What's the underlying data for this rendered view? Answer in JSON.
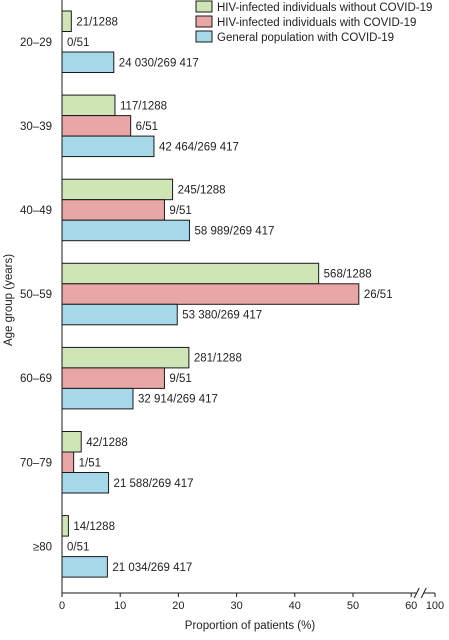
{
  "chart_data": {
    "type": "bar",
    "orientation": "horizontal",
    "xlabel": "Proportion of patients (%)",
    "ylabel": "Age group (years)",
    "xlim": [
      0,
      60
    ],
    "axis_break": true,
    "xticks": [
      "0",
      "10",
      "20",
      "30",
      "40",
      "50",
      "60",
      "100"
    ],
    "categories": [
      "20–29",
      "30–39",
      "40–49",
      "50–59",
      "60–69",
      "70–79",
      "≥80"
    ],
    "legend_position": "top-right",
    "series": [
      {
        "name": "HIV-infected individuals without COVID-19",
        "color": "#cfe5b6",
        "values": [
          1.6,
          9.1,
          19.0,
          44.1,
          21.8,
          3.3,
          1.1
        ],
        "labels": [
          "21/1288",
          "117/1288",
          "245/1288",
          "568/1288",
          "281/1288",
          "42/1288",
          "14/1288"
        ]
      },
      {
        "name": "HIV-infected individuals with COVID-19",
        "color": "#e9a6a6",
        "values": [
          0,
          11.8,
          17.6,
          51.0,
          17.6,
          2.0,
          0
        ],
        "labels": [
          "0/51",
          "6/51",
          "9/51",
          "26/51",
          "9/51",
          "1/51",
          "0/51"
        ]
      },
      {
        "name": "General population with COVID-19",
        "color": "#a7d8ea",
        "values": [
          8.9,
          15.8,
          21.9,
          19.8,
          12.2,
          8.0,
          7.8
        ],
        "labels": [
          "24 030/269 417",
          "42 464/269 417",
          "58 989/269 417",
          "53 380/269 417",
          "32 914/269 417",
          "21 588/269 417",
          "21 034/269 417"
        ]
      }
    ]
  }
}
